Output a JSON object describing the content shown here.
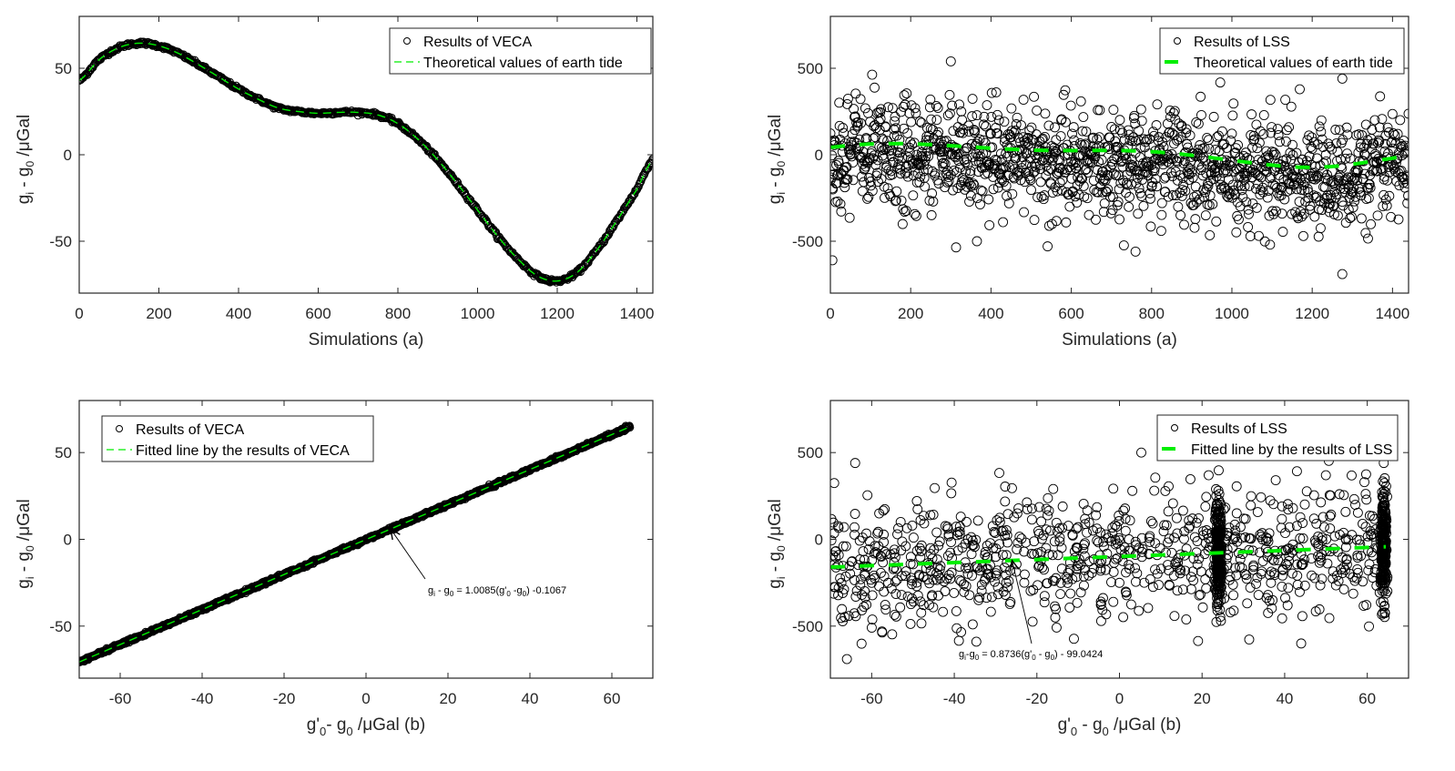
{
  "figure": {
    "panels": [
      {
        "id": "top-left",
        "legend": [
          "Results of VECA",
          "Theoretical values of earth tide"
        ],
        "xlabel": "Simulations    (a)",
        "ylabel_main": "g",
        "ylabel_sub1": "i",
        "ylabel_mid": " - g",
        "ylabel_sub2": "0",
        "ylabel_unit": "/μGal"
      },
      {
        "id": "top-right",
        "legend": [
          "Results of LSS",
          "Theoretical values of earth tide"
        ],
        "xlabel": "Simulations    (a)",
        "ylabel_main": "g",
        "ylabel_sub1": "i",
        "ylabel_mid": " - g",
        "ylabel_sub2": "0",
        "ylabel_unit": "/μGal"
      },
      {
        "id": "bottom-left",
        "legend": [
          "Results of VECA",
          "Fitted line by the results of VECA"
        ],
        "xlabel_parts": [
          "g'",
          "0",
          "- g",
          "0",
          "   /μGal     (b)"
        ],
        "ylabel_main": "g",
        "ylabel_sub1": "i",
        "ylabel_mid": " - g",
        "ylabel_sub2": "0",
        "ylabel_unit": "/μGal",
        "annotation_parts": [
          "g",
          "i",
          " - g",
          "0",
          " = 1.0085(g'",
          "0",
          " -g",
          "0",
          ") -0.1067"
        ]
      },
      {
        "id": "bottom-right",
        "legend": [
          "Results of LSS",
          "Fitted line by the results of LSS"
        ],
        "xlabel_parts": [
          "g'",
          "0",
          " - g",
          "0",
          "     /μGal     (b)"
        ],
        "ylabel_main": "g",
        "ylabel_sub1": "i",
        "ylabel_mid": " - g",
        "ylabel_sub2": "0",
        "ylabel_unit": "/μGal",
        "annotation_parts": [
          "g",
          "i",
          "-g",
          "0",
          " = 0.8736(g'",
          "0",
          " - g",
          "0",
          ") - 99.0424"
        ]
      }
    ]
  },
  "chart_data": [
    {
      "type": "line",
      "title": "",
      "xlabel": "Simulations (a)",
      "ylabel": "g_i - g_0 /μGal",
      "xlim": [
        0,
        1440
      ],
      "ylim": [
        -80,
        80
      ],
      "xticks": [
        0,
        200,
        400,
        600,
        800,
        1000,
        1200,
        1400
      ],
      "yticks": [
        -50,
        0,
        50
      ],
      "legend_position": "top-right",
      "grid": false,
      "series": [
        {
          "name": "Results of VECA",
          "style": "circle-markers",
          "color": "#000000",
          "x": [
            0,
            50,
            100,
            150,
            200,
            250,
            300,
            350,
            400,
            450,
            500,
            550,
            600,
            650,
            700,
            750,
            800,
            850,
            900,
            950,
            1000,
            1050,
            1100,
            1150,
            1200,
            1250,
            1300,
            1350,
            1400,
            1440
          ],
          "y": [
            43,
            55,
            62,
            64.5,
            63,
            58.5,
            52,
            45,
            38,
            32,
            27,
            25,
            24,
            24.5,
            24.5,
            23,
            18,
            9,
            -3,
            -17,
            -32,
            -47,
            -60,
            -70,
            -73,
            -68,
            -55,
            -38,
            -20,
            -3
          ]
        },
        {
          "name": "Theoretical values of earth tide",
          "style": "dashed",
          "color": "#00ff00",
          "x": [
            0,
            50,
            100,
            150,
            200,
            250,
            300,
            350,
            400,
            450,
            500,
            550,
            600,
            650,
            700,
            750,
            800,
            850,
            900,
            950,
            1000,
            1050,
            1100,
            1150,
            1200,
            1250,
            1300,
            1350,
            1400,
            1440
          ],
          "y": [
            43,
            55,
            62,
            64.5,
            63,
            58.5,
            52,
            45,
            38,
            32,
            27,
            25,
            24,
            24.5,
            24.5,
            23,
            18,
            9,
            -3,
            -17,
            -32,
            -47,
            -60,
            -70,
            -73,
            -68,
            -55,
            -38,
            -20,
            -3
          ]
        }
      ]
    },
    {
      "type": "scatter",
      "title": "",
      "xlabel": "Simulations (a)",
      "ylabel": "g_i - g_0 /μGal",
      "xlim": [
        0,
        1440
      ],
      "ylim": [
        -800,
        800
      ],
      "xticks": [
        0,
        200,
        400,
        600,
        800,
        1000,
        1200,
        1400
      ],
      "yticks": [
        -500,
        0,
        500
      ],
      "legend_position": "top-right",
      "grid": false,
      "scatter_summary": {
        "name": "Results of LSS",
        "n_points": 1440,
        "center_follows_theoretical": true,
        "noise_std_approx": 150,
        "notable_points": [
          [
            300,
            540
          ],
          [
            1275,
            440
          ],
          [
            5,
            -610
          ],
          [
            1275,
            -690
          ],
          [
            365,
            -500
          ],
          [
            760,
            -560
          ]
        ]
      },
      "series": [
        {
          "name": "Theoretical values of earth tide",
          "style": "dashed-thick",
          "color": "#00ff00",
          "x": [
            0,
            50,
            100,
            150,
            200,
            250,
            300,
            350,
            400,
            450,
            500,
            550,
            600,
            650,
            700,
            750,
            800,
            850,
            900,
            950,
            1000,
            1050,
            1100,
            1150,
            1200,
            1250,
            1300,
            1350,
            1400,
            1440
          ],
          "y": [
            43,
            55,
            62,
            64.5,
            63,
            58.5,
            52,
            45,
            38,
            32,
            27,
            25,
            24,
            24.5,
            24.5,
            23,
            18,
            9,
            -3,
            -17,
            -32,
            -47,
            -60,
            -70,
            -73,
            -68,
            -55,
            -38,
            -20,
            -3
          ]
        }
      ]
    },
    {
      "type": "scatter",
      "title": "",
      "xlabel": "g'_0 - g_0 /μGal (b)",
      "ylabel": "g_i - g_0 /μGal",
      "xlim": [
        -70,
        70
      ],
      "ylim": [
        -80,
        80
      ],
      "xticks": [
        -60,
        -40,
        -20,
        0,
        20,
        40,
        60
      ],
      "yticks": [
        -50,
        0,
        50
      ],
      "legend_position": "top-left",
      "grid": false,
      "fit": {
        "slope": 1.0085,
        "intercept": -0.1067
      },
      "series": [
        {
          "name": "Results of VECA",
          "style": "circle-markers",
          "color": "#000000",
          "x_range": [
            -70,
            64.5
          ]
        },
        {
          "name": "Fitted line by the results of VECA",
          "style": "dashed",
          "color": "#00ff00",
          "x_range": [
            -70,
            64.5
          ]
        }
      ],
      "annotation": {
        "text": "g_i - g_0 = 1.0085(g'_0 -g_0) -0.1067",
        "arrow_to": [
          6,
          6
        ]
      }
    },
    {
      "type": "scatter",
      "title": "",
      "xlabel": "g'_0 - g_0 /μGal (b)",
      "ylabel": "g_i - g_0 /μGal",
      "xlim": [
        -70,
        70
      ],
      "ylim": [
        -800,
        800
      ],
      "xticks": [
        -60,
        -40,
        -20,
        0,
        20,
        40,
        60
      ],
      "yticks": [
        -500,
        0,
        500
      ],
      "legend_position": "top-right",
      "grid": false,
      "fit": {
        "slope": 0.8736,
        "intercept": -99.0424
      },
      "scatter_summary": {
        "name": "Results of LSS",
        "n_points": 1440,
        "dense_columns_at_x": [
          24,
          64
        ],
        "noise_std_approx": 150,
        "notable_points": [
          [
            -64,
            440
          ],
          [
            -66,
            -690
          ],
          [
            44,
            -600
          ],
          [
            64,
            440
          ]
        ]
      },
      "series": [
        {
          "name": "Fitted line by the results of LSS",
          "style": "dashed-thick",
          "color": "#00ff00",
          "x_range": [
            -70,
            64.5
          ]
        }
      ],
      "annotation": {
        "text": "g_i-g_0 = 0.8736(g'_0 - g_0) - 99.0424",
        "arrow_to": [
          -26,
          -122
        ]
      }
    }
  ]
}
